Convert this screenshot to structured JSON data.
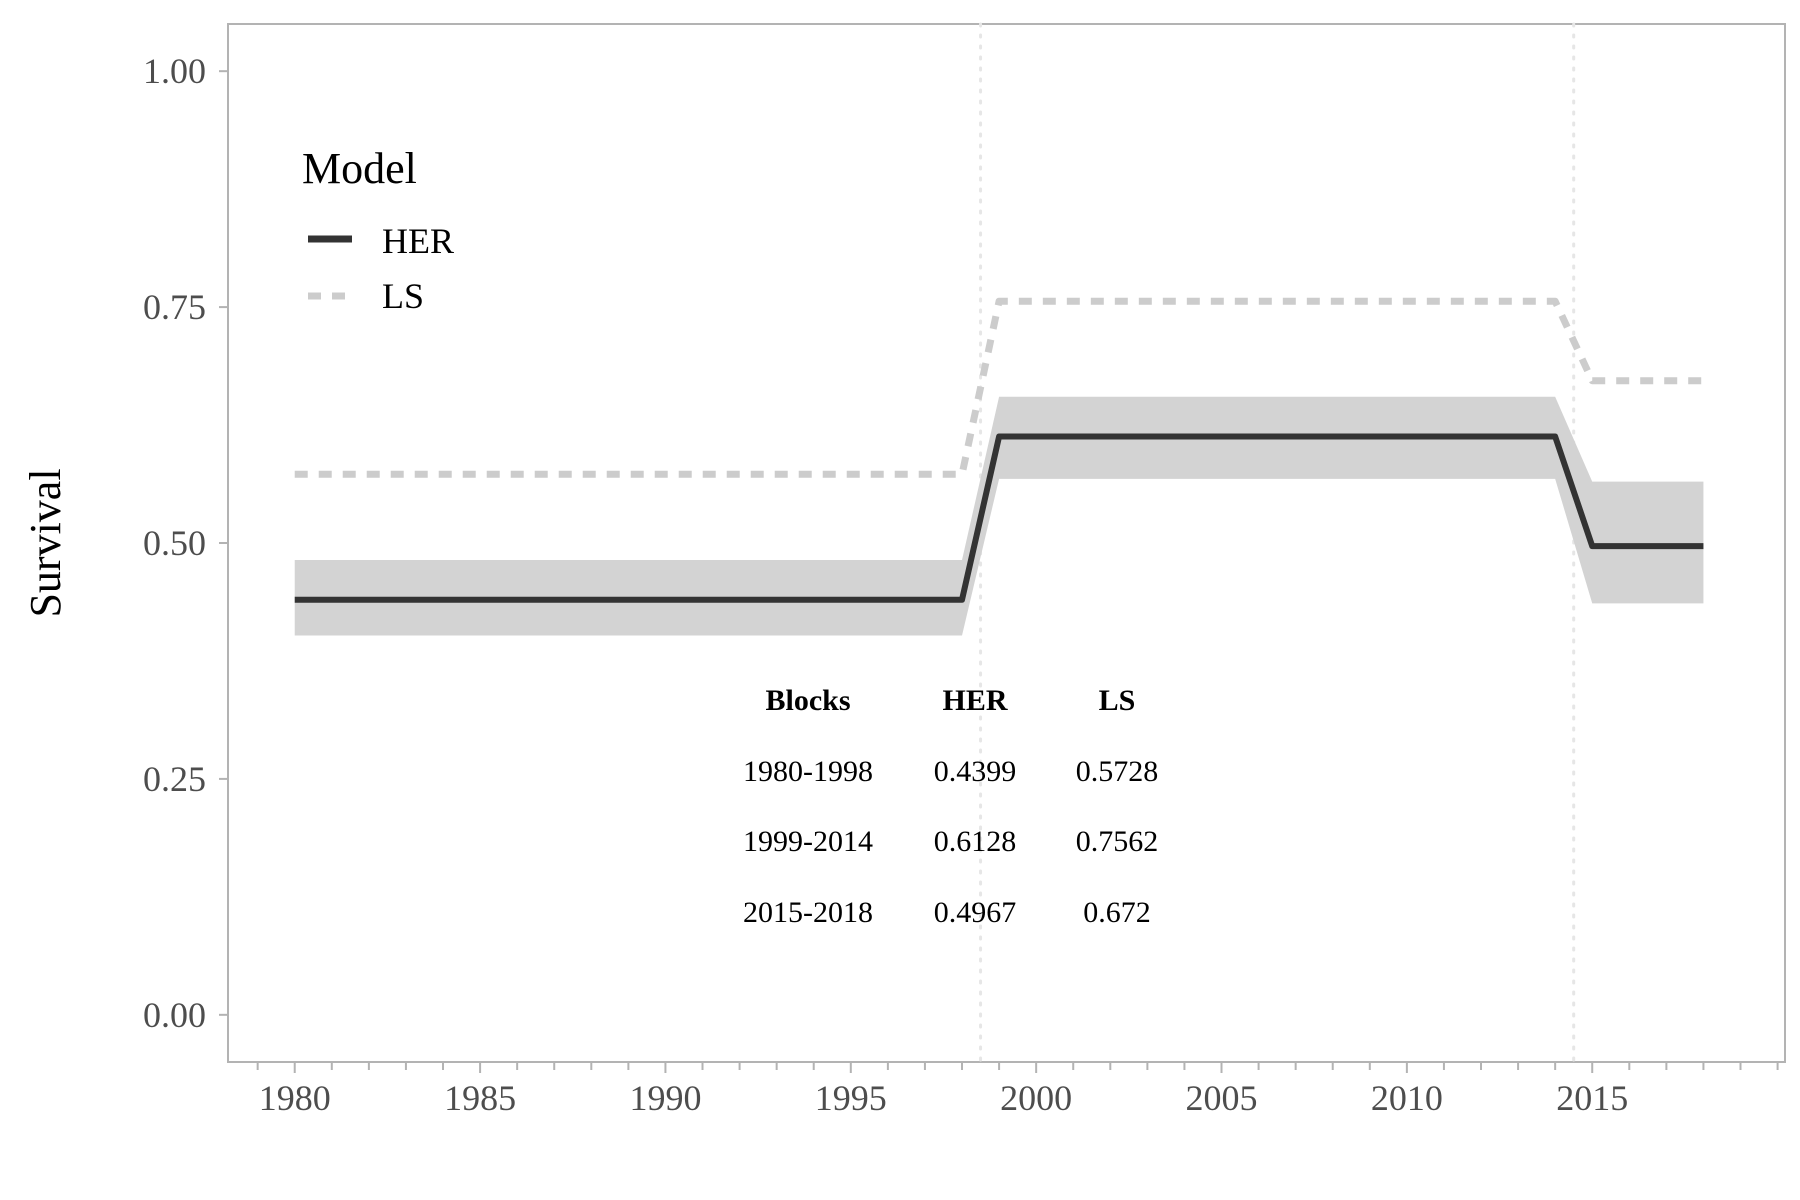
{
  "chart_data": {
    "type": "line",
    "ylabel": "Survival",
    "xlim": [
      1978.2,
      2020.2
    ],
    "ylim": [
      -0.05,
      1.05
    ],
    "x_ticks": [
      1980,
      1985,
      1990,
      1995,
      2000,
      2005,
      2010,
      2015
    ],
    "y_ticks": [
      0.0,
      0.25,
      0.5,
      0.75,
      1.0
    ],
    "y_tick_labels": [
      "0.00",
      "0.25",
      "0.50",
      "0.75",
      "1.00"
    ],
    "vlines": [
      1998.5,
      2014.5
    ],
    "legend": {
      "title": "Model",
      "position": "top-left",
      "entries": [
        {
          "label": "HER",
          "style": "solid",
          "color": "#333333"
        },
        {
          "label": "LS",
          "style": "dashed",
          "color": "#cccccc"
        }
      ]
    },
    "series": [
      {
        "name": "HER",
        "x": [
          1980,
          1998,
          1999,
          2014,
          2015,
          2018
        ],
        "y": [
          0.4399,
          0.4399,
          0.6128,
          0.6128,
          0.4967,
          0.4967
        ],
        "ci_lower": [
          0.402,
          0.402,
          0.568,
          0.568,
          0.436,
          0.436
        ],
        "ci_upper": [
          0.482,
          0.482,
          0.655,
          0.655,
          0.565,
          0.565
        ]
      },
      {
        "name": "LS",
        "x": [
          1980,
          1998,
          1999,
          2014,
          2015,
          2018
        ],
        "y": [
          0.5728,
          0.5728,
          0.7562,
          0.7562,
          0.672,
          0.672
        ]
      }
    ],
    "table": {
      "headers": [
        "Blocks",
        "HER",
        "LS"
      ],
      "rows": [
        [
          "1980-1998",
          "0.4399",
          "0.5728"
        ],
        [
          "1999-2014",
          "0.6128",
          "0.7562"
        ],
        [
          "2015-2018",
          "0.4967",
          "0.672"
        ]
      ]
    },
    "colors": {
      "her_line": "#333333",
      "her_band": "#d3d3d3",
      "ls_line": "#cccccc",
      "vline": "#e6e6e6",
      "frame": "#b3b3b3",
      "tick_text": "#4d4d4d"
    }
  }
}
